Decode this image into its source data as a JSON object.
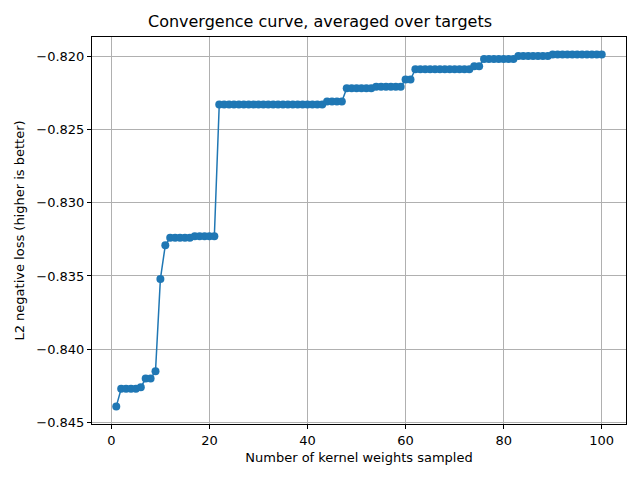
{
  "chart_data": {
    "type": "line",
    "title": "Convergence curve, averaged over targets",
    "x_label": "Number of kernel weights sampled",
    "y_label": "L2 negative loss (higher is better)",
    "x": [
      1,
      2,
      3,
      4,
      5,
      6,
      7,
      8,
      9,
      10,
      11,
      12,
      13,
      14,
      15,
      16,
      17,
      18,
      19,
      20,
      21,
      22,
      23,
      24,
      25,
      26,
      27,
      28,
      29,
      30,
      31,
      32,
      33,
      34,
      35,
      36,
      37,
      38,
      39,
      40,
      41,
      42,
      43,
      44,
      45,
      46,
      47,
      48,
      49,
      50,
      51,
      52,
      53,
      54,
      55,
      56,
      57,
      58,
      59,
      60,
      61,
      62,
      63,
      64,
      65,
      66,
      67,
      68,
      69,
      70,
      71,
      72,
      73,
      74,
      75,
      76,
      77,
      78,
      79,
      80,
      81,
      82,
      83,
      84,
      85,
      86,
      87,
      88,
      89,
      90,
      91,
      92,
      93,
      94,
      95,
      96,
      97,
      98,
      99,
      100
    ],
    "values": [
      -0.8439,
      -0.8427,
      -0.8427,
      -0.8427,
      -0.8427,
      -0.8426,
      -0.842,
      -0.842,
      -0.8415,
      -0.8352,
      -0.8329,
      -0.8324,
      -0.8324,
      -0.8324,
      -0.8324,
      -0.8324,
      -0.8323,
      -0.8323,
      -0.8323,
      -0.8323,
      -0.8323,
      -0.8233,
      -0.8233,
      -0.8233,
      -0.8233,
      -0.8233,
      -0.8233,
      -0.8233,
      -0.8233,
      -0.8233,
      -0.8233,
      -0.8233,
      -0.8233,
      -0.8233,
      -0.8233,
      -0.8233,
      -0.8233,
      -0.8233,
      -0.8233,
      -0.8233,
      -0.8233,
      -0.8233,
      -0.8233,
      -0.8231,
      -0.8231,
      -0.8231,
      -0.8231,
      -0.8222,
      -0.8222,
      -0.8222,
      -0.8222,
      -0.8222,
      -0.8222,
      -0.8221,
      -0.8221,
      -0.8221,
      -0.8221,
      -0.8221,
      -0.8221,
      -0.8216,
      -0.8216,
      -0.8209,
      -0.8209,
      -0.8209,
      -0.8209,
      -0.8209,
      -0.8209,
      -0.8209,
      -0.8209,
      -0.8209,
      -0.8209,
      -0.8209,
      -0.8209,
      -0.8207,
      -0.8207,
      -0.8202,
      -0.8202,
      -0.8202,
      -0.8202,
      -0.8202,
      -0.8202,
      -0.8202,
      -0.82,
      -0.82,
      -0.82,
      -0.82,
      -0.82,
      -0.82,
      -0.82,
      -0.8199,
      -0.8199,
      -0.8199,
      -0.8199,
      -0.8199,
      -0.8199,
      -0.8199,
      -0.8199,
      -0.8199,
      -0.8199,
      -0.8199
    ],
    "color": "#1f77b4",
    "marker": "circle",
    "line_style": "solid",
    "xlim": [
      -3.95,
      104.95
    ],
    "xticks": [
      0,
      20,
      40,
      60,
      80,
      100
    ],
    "ylim": [
      -0.8451,
      -0.8187
    ],
    "yticks": [
      {
        "value": -0.845,
        "label": "−0.845"
      },
      {
        "value": -0.84,
        "label": "−0.840"
      },
      {
        "value": -0.835,
        "label": "−0.835"
      },
      {
        "value": -0.83,
        "label": "−0.830"
      },
      {
        "value": -0.825,
        "label": "−0.825"
      },
      {
        "value": -0.82,
        "label": "−0.820"
      }
    ],
    "grid": true
  }
}
